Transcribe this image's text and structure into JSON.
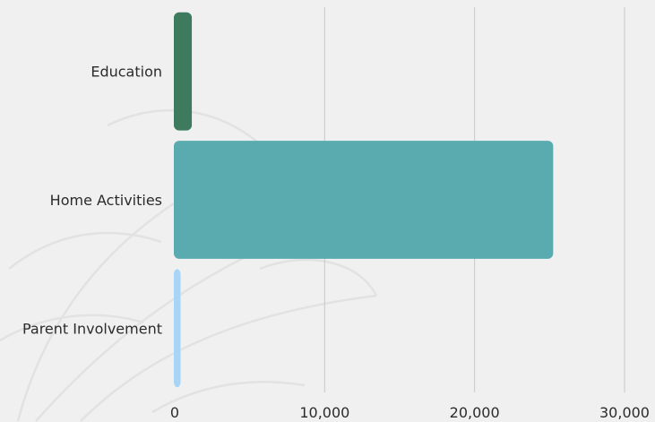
{
  "chart_data": {
    "type": "bar",
    "orientation": "horizontal",
    "categories": [
      "Education",
      "Home Activities",
      "Parent Involvement"
    ],
    "values": [
      1200,
      25300,
      450
    ],
    "colors": [
      "#3d7a5e",
      "#5aabb0",
      "#a8d4f5"
    ],
    "xlim": [
      0,
      30000
    ],
    "x_ticks": [
      0,
      10000,
      20000,
      30000
    ],
    "x_tick_labels": [
      "0",
      "10,000",
      "20,000",
      "30,000"
    ],
    "grid": "vertical",
    "legend": "none",
    "title": "",
    "xlabel": "",
    "ylabel": ""
  }
}
